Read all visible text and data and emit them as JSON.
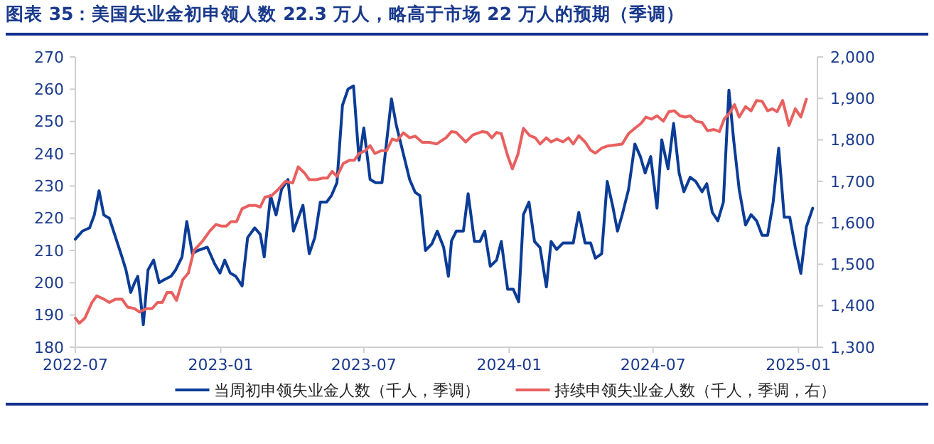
{
  "chart_data": {
    "type": "line",
    "title": "图表 35：美国失业金初申领人数 22.3 万人，略高于市场 22 万人的预期（季调）",
    "xlim": [
      "2022-07-01",
      "2025-01-25"
    ],
    "xticks": [
      {
        "value": "2022-07-01",
        "label": "2022-07"
      },
      {
        "value": "2023-01-01",
        "label": "2023-01"
      },
      {
        "value": "2023-07-01",
        "label": "2023-07"
      },
      {
        "value": "2024-01-01",
        "label": "2024-01"
      },
      {
        "value": "2024-07-01",
        "label": "2024-07"
      },
      {
        "value": "2025-01-01",
        "label": "2025-01"
      }
    ],
    "ylim": [
      180,
      270
    ],
    "yticks": [
      180,
      190,
      200,
      210,
      220,
      230,
      240,
      250,
      260,
      270
    ],
    "y2lim": [
      1300,
      2000
    ],
    "y2ticks": [
      {
        "value": 1300,
        "label": "1,300"
      },
      {
        "value": 1400,
        "label": "1,400"
      },
      {
        "value": 1500,
        "label": "1,500"
      },
      {
        "value": 1600,
        "label": "1,600"
      },
      {
        "value": 1700,
        "label": "1,700"
      },
      {
        "value": 1800,
        "label": "1,800"
      },
      {
        "value": 1900,
        "label": "1,900"
      },
      {
        "value": 2000,
        "label": "2,000"
      }
    ],
    "grid": false,
    "legend": "bottom",
    "marker": "none",
    "line_style": "solid",
    "series": [
      {
        "name": "当周初申领失业金人数（千人，季调）",
        "color": "#0b3c96",
        "x": [
          "2022-07-01",
          "2022-07-10",
          "2022-07-19",
          "2022-07-25",
          "2022-07-31",
          "2022-08-06",
          "2022-08-13",
          "2022-08-21",
          "2022-08-29",
          "2022-09-03",
          "2022-09-09",
          "2022-09-14",
          "2022-09-18",
          "2022-09-21",
          "2022-09-25",
          "2022-10-01",
          "2022-10-08",
          "2022-10-15",
          "2022-10-22",
          "2022-10-30",
          "2022-11-05",
          "2022-11-13",
          "2022-11-19",
          "2022-11-26",
          "2022-12-03",
          "2022-12-15",
          "2022-12-24",
          "2022-12-31",
          "2023-01-06",
          "2023-01-13",
          "2023-01-20",
          "2023-01-28",
          "2023-02-04",
          "2023-02-13",
          "2023-02-20",
          "2023-02-25",
          "2023-03-05",
          "2023-03-12",
          "2023-03-19",
          "2023-03-27",
          "2023-04-03",
          "2023-04-15",
          "2023-04-23",
          "2023-04-30",
          "2023-05-07",
          "2023-05-15",
          "2023-05-21",
          "2023-05-28",
          "2023-06-04",
          "2023-06-11",
          "2023-06-18",
          "2023-06-25",
          "2023-07-01",
          "2023-07-09",
          "2023-07-16",
          "2023-07-24",
          "2023-08-05",
          "2023-08-11",
          "2023-08-20",
          "2023-08-28",
          "2023-09-04",
          "2023-09-10",
          "2023-09-17",
          "2023-09-25",
          "2023-10-02",
          "2023-10-10",
          "2023-10-16",
          "2023-10-20",
          "2023-10-26",
          "2023-11-04",
          "2023-11-10",
          "2023-11-18",
          "2023-11-25",
          "2023-12-01",
          "2023-12-08",
          "2023-12-16",
          "2023-12-22",
          "2023-12-30",
          "2024-01-06",
          "2024-01-13",
          "2024-01-19",
          "2024-01-26",
          "2024-02-02",
          "2024-02-09",
          "2024-02-17",
          "2024-02-23",
          "2024-03-01",
          "2024-03-09",
          "2024-03-22",
          "2024-03-29",
          "2024-04-06",
          "2024-04-13",
          "2024-04-19",
          "2024-04-27",
          "2024-05-04",
          "2024-05-11",
          "2024-05-17",
          "2024-05-23",
          "2024-05-31",
          "2024-06-08",
          "2024-06-15",
          "2024-06-21",
          "2024-06-28",
          "2024-07-06",
          "2024-07-12",
          "2024-07-20",
          "2024-07-27",
          "2024-08-03",
          "2024-08-09",
          "2024-08-17",
          "2024-08-24",
          "2024-09-01",
          "2024-09-07",
          "2024-09-14",
          "2024-09-21",
          "2024-09-28",
          "2024-10-05",
          "2024-10-11",
          "2024-10-18",
          "2024-10-26",
          "2024-11-02",
          "2024-11-09",
          "2024-11-16",
          "2024-11-23",
          "2024-11-30",
          "2024-12-07",
          "2024-12-14",
          "2024-12-21",
          "2024-12-28",
          "2025-01-04",
          "2025-01-11",
          "2025-01-19"
        ],
        "values": [
          213.5,
          216,
          217,
          221,
          228.5,
          221,
          220,
          214,
          208,
          204,
          197,
          200,
          202,
          196,
          187,
          204,
          207,
          200,
          201,
          202,
          204,
          208,
          219,
          209,
          210,
          211,
          206,
          203,
          207,
          203,
          202,
          199,
          214,
          217,
          215,
          208,
          227,
          221,
          229,
          232,
          216,
          224,
          209,
          214,
          225,
          225,
          227,
          231,
          255,
          260,
          261,
          238,
          248,
          232,
          231,
          231,
          257,
          249,
          240,
          232,
          228,
          227,
          210,
          212,
          216,
          211,
          202,
          213,
          216,
          216,
          227.6,
          212.8,
          212.8,
          216,
          205.1,
          207,
          212.8,
          198,
          198,
          194.1,
          221.1,
          225,
          212.8,
          210.9,
          198.7,
          212.8,
          210.3,
          212.3,
          212.3,
          221.8,
          212.3,
          212.3,
          207.6,
          209,
          231.4,
          223.7,
          216,
          221.1,
          228.9,
          243,
          239.1,
          234,
          239.1,
          223.1,
          244.3,
          235.3,
          249.4,
          234,
          228.2,
          232.7,
          231.4,
          228.2,
          230.7,
          221.8,
          219.2,
          225,
          259.7,
          244.3,
          228.9,
          217.9,
          221.1,
          219.2,
          214.7,
          214.7,
          225,
          241.7,
          220.3,
          220.3,
          210.9,
          202.9,
          217.3,
          223.1
        ]
      },
      {
        "name": "持续申领失业金人数（千人，季调，右）",
        "color": "#e8605f",
        "axis": "y2",
        "x": [
          "2022-07-01",
          "2022-07-06",
          "2022-07-13",
          "2022-07-22",
          "2022-07-28",
          "2022-08-06",
          "2022-08-13",
          "2022-08-21",
          "2022-08-29",
          "2022-09-05",
          "2022-09-14",
          "2022-09-20",
          "2022-09-29",
          "2022-10-06",
          "2022-10-13",
          "2022-10-19",
          "2022-10-25",
          "2022-10-31",
          "2022-11-06",
          "2022-11-14",
          "2022-11-21",
          "2022-11-28",
          "2022-12-09",
          "2022-12-18",
          "2022-12-26",
          "2023-01-02",
          "2023-01-08",
          "2023-01-14",
          "2023-01-21",
          "2023-01-28",
          "2023-02-06",
          "2023-02-14",
          "2023-02-20",
          "2023-02-26",
          "2023-03-06",
          "2023-03-15",
          "2023-03-24",
          "2023-04-02",
          "2023-04-09",
          "2023-04-17",
          "2023-04-23",
          "2023-05-02",
          "2023-05-10",
          "2023-05-16",
          "2023-05-22",
          "2023-05-28",
          "2023-06-05",
          "2023-06-13",
          "2023-06-19",
          "2023-06-25",
          "2023-07-03",
          "2023-07-09",
          "2023-07-15",
          "2023-07-23",
          "2023-07-30",
          "2023-08-06",
          "2023-08-12",
          "2023-08-20",
          "2023-08-28",
          "2023-09-04",
          "2023-09-13",
          "2023-09-22",
          "2023-10-01",
          "2023-10-13",
          "2023-10-20",
          "2023-10-26",
          "2023-11-07",
          "2023-11-16",
          "2023-11-28",
          "2023-12-04",
          "2023-12-10",
          "2023-12-16",
          "2023-12-22",
          "2023-12-30",
          "2024-01-05",
          "2024-01-12",
          "2024-01-19",
          "2024-01-27",
          "2024-02-03",
          "2024-02-09",
          "2024-02-17",
          "2024-02-23",
          "2024-03-01",
          "2024-03-09",
          "2024-03-16",
          "2024-03-22",
          "2024-03-29",
          "2024-04-06",
          "2024-04-13",
          "2024-04-19",
          "2024-04-27",
          "2024-05-04",
          "2024-05-16",
          "2024-05-23",
          "2024-05-31",
          "2024-06-08",
          "2024-06-16",
          "2024-06-22",
          "2024-06-29",
          "2024-07-06",
          "2024-07-14",
          "2024-07-21",
          "2024-07-28",
          "2024-08-04",
          "2024-08-11",
          "2024-08-17",
          "2024-08-24",
          "2024-09-01",
          "2024-09-08",
          "2024-09-16",
          "2024-09-23",
          "2024-09-29",
          "2024-10-06",
          "2024-10-12",
          "2024-10-18",
          "2024-10-26",
          "2024-11-02",
          "2024-11-09",
          "2024-11-16",
          "2024-11-23",
          "2024-11-29",
          "2024-12-05",
          "2024-12-12",
          "2024-12-20",
          "2024-12-28",
          "2025-01-04",
          "2025-01-11"
        ],
        "values": [
          1370,
          1358,
          1370,
          1408,
          1424,
          1416,
          1408,
          1416,
          1416,
          1397,
          1393,
          1385,
          1393,
          1393,
          1408,
          1408,
          1432,
          1432,
          1413,
          1463,
          1479,
          1533,
          1556,
          1580,
          1596,
          1592,
          1592,
          1603,
          1603,
          1634,
          1642,
          1642,
          1638,
          1662,
          1665,
          1681,
          1700,
          1696,
          1735,
          1720,
          1704,
          1704,
          1708,
          1708,
          1724,
          1712,
          1743,
          1751,
          1751,
          1767,
          1774,
          1786,
          1767,
          1774,
          1774,
          1802,
          1798,
          1817,
          1805,
          1809,
          1794,
          1794,
          1790,
          1805,
          1820,
          1818,
          1795,
          1812,
          1820,
          1818,
          1805,
          1818,
          1815,
          1762,
          1730,
          1765,
          1828,
          1810,
          1805,
          1790,
          1805,
          1795,
          1802,
          1795,
          1805,
          1790,
          1810,
          1795,
          1775,
          1768,
          1780,
          1785,
          1788,
          1790,
          1815,
          1828,
          1840,
          1855,
          1850,
          1858,
          1845,
          1868,
          1870,
          1858,
          1855,
          1858,
          1845,
          1842,
          1822,
          1825,
          1820,
          1850,
          1865,
          1885,
          1855,
          1880,
          1870,
          1895,
          1893,
          1870,
          1875,
          1868,
          1895,
          1835,
          1875,
          1855,
          1898
        ]
      }
    ]
  }
}
